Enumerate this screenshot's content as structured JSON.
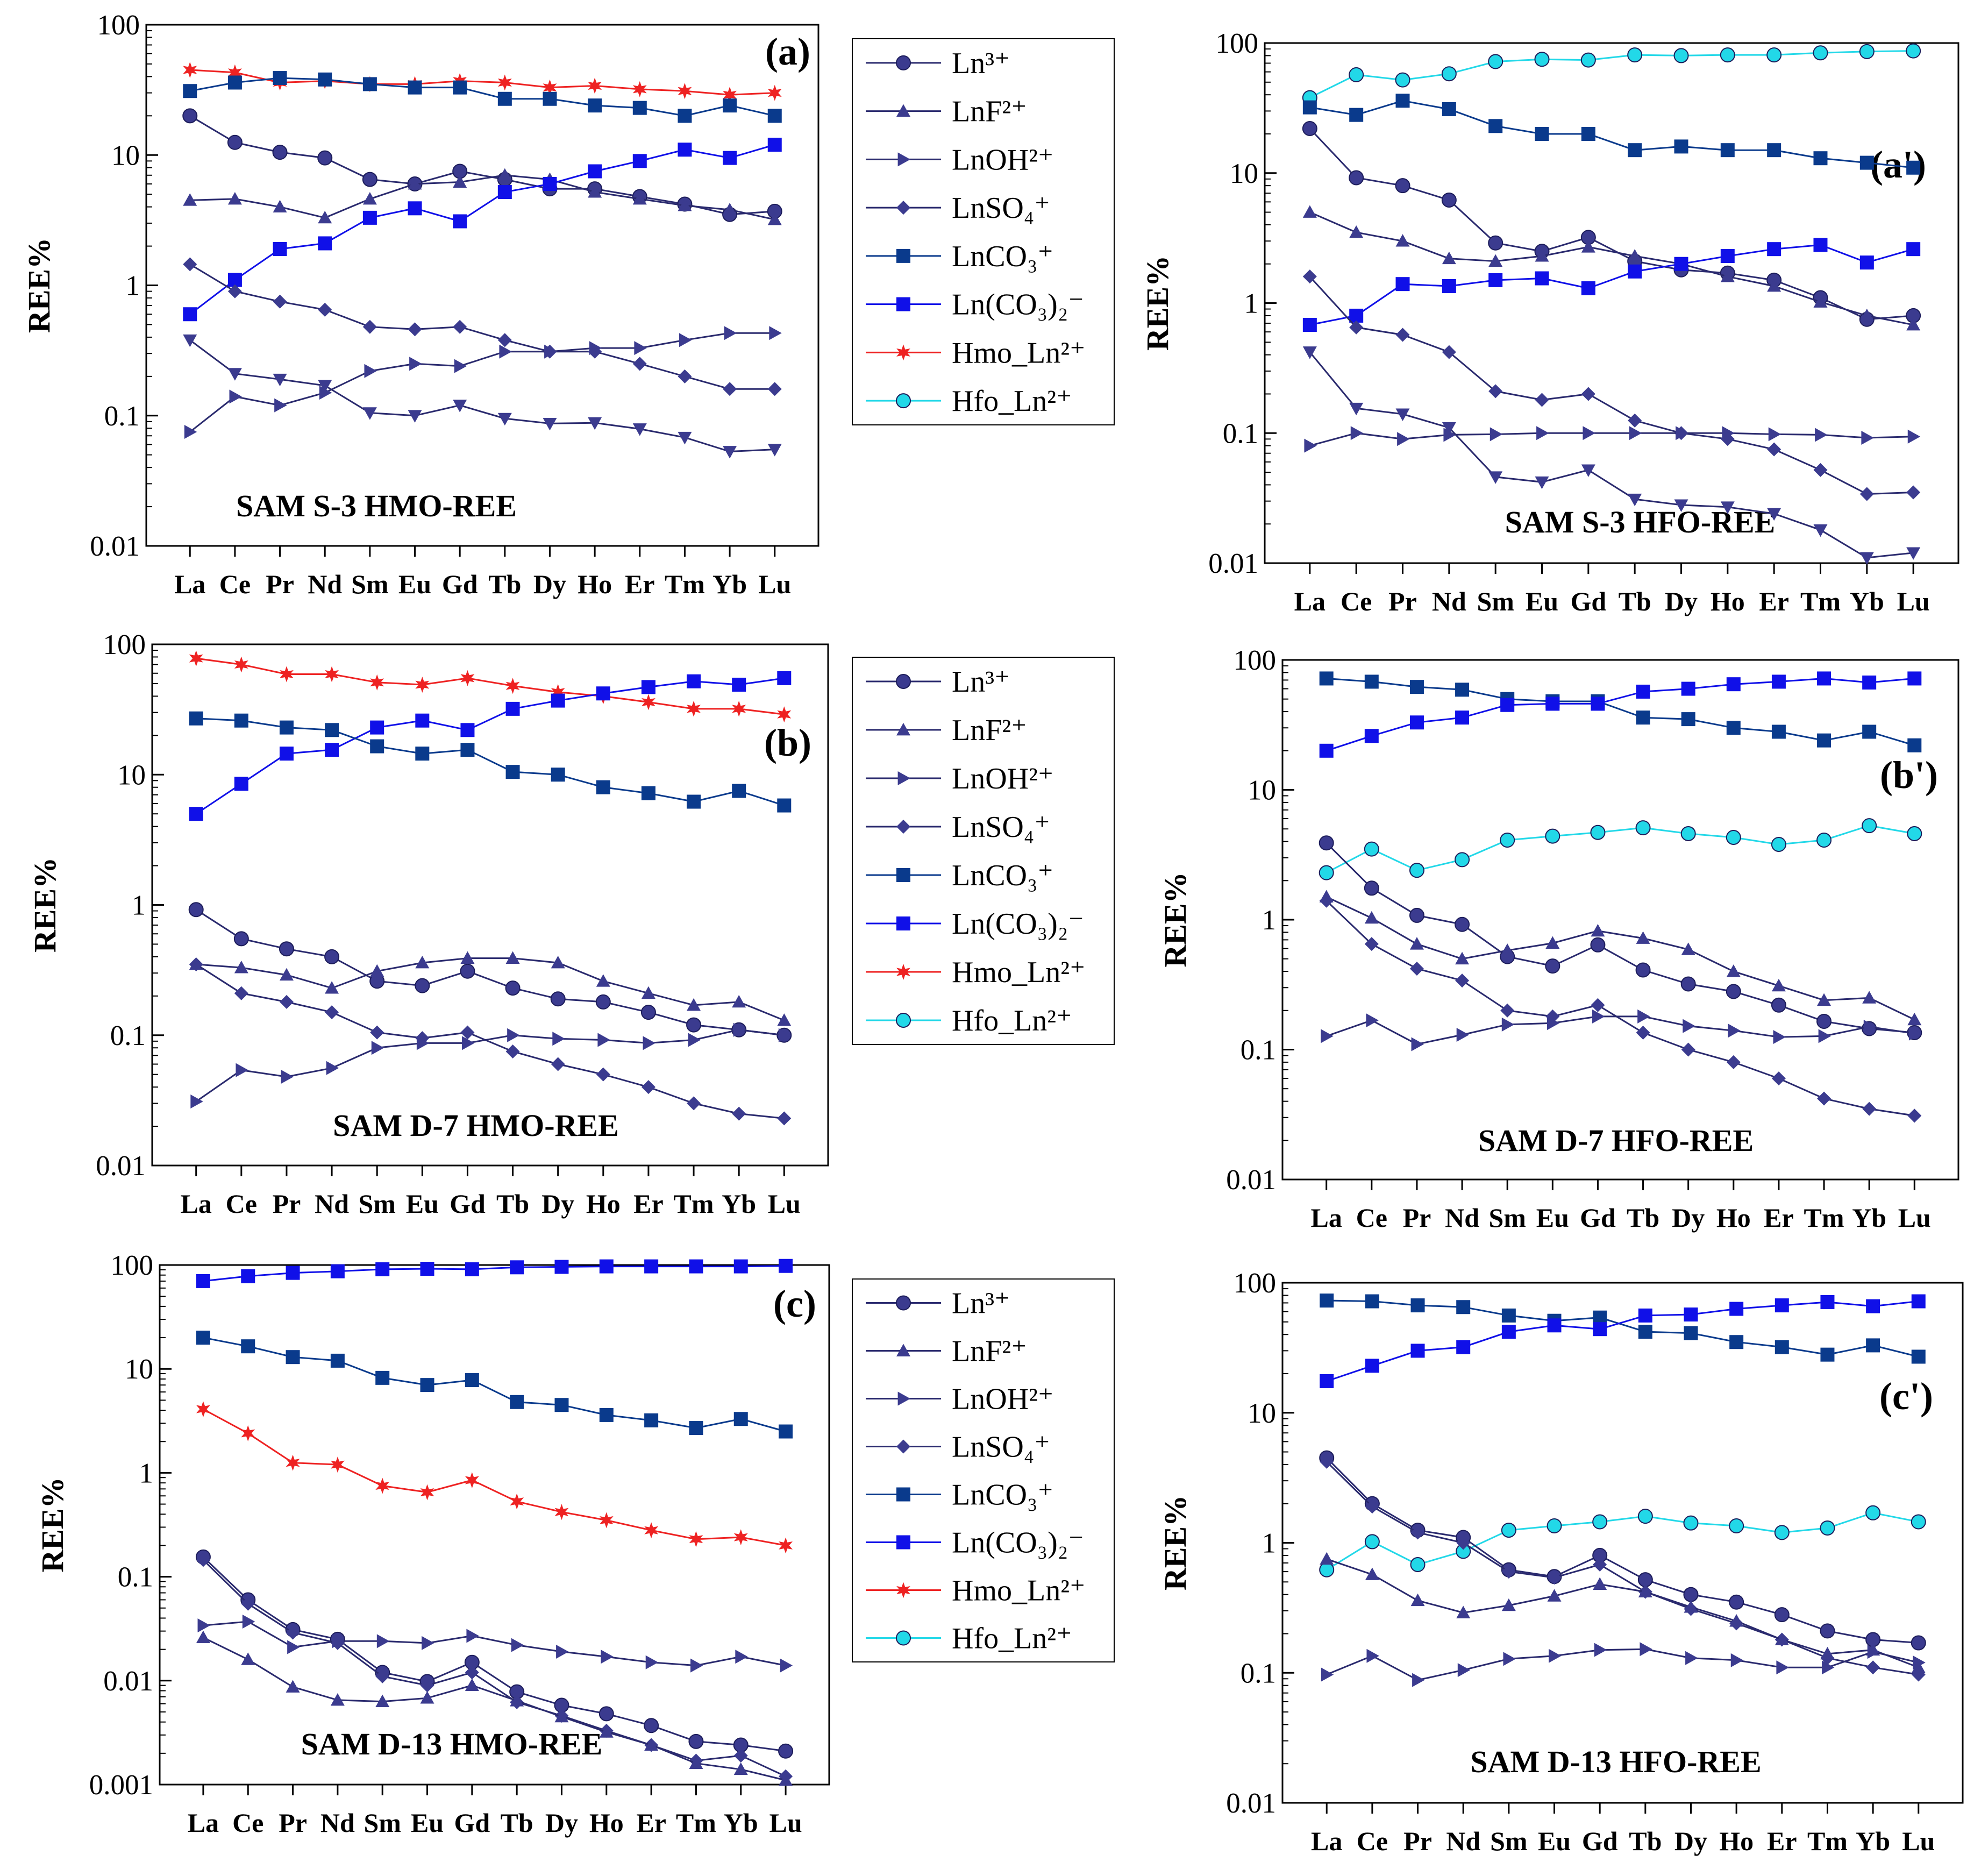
{
  "legend_items": [
    {
      "key": "ln3",
      "label": "Ln³⁺",
      "color": "#3b3b8f",
      "marker": "circle"
    },
    {
      "key": "lnf",
      "label": "LnF²⁺",
      "color": "#3b3b8f",
      "marker": "triangle-up"
    },
    {
      "key": "lnoh",
      "label": "LnOH²⁺",
      "color": "#3b3b8f",
      "marker": "triangle-right"
    },
    {
      "key": "lnso4",
      "label": "LnSO₄⁺",
      "color": "#3b3b8f",
      "marker": "diamond"
    },
    {
      "key": "lnco3",
      "label": "LnCO₃⁺",
      "color": "#0a3a8c",
      "marker": "square"
    },
    {
      "key": "lnco32",
      "label": "Ln(CO₃)₂⁻",
      "color": "#1010e8",
      "marker": "square"
    },
    {
      "key": "hmo",
      "label": "Hmo_Ln²⁺",
      "color": "#ee2222",
      "marker": "star"
    },
    {
      "key": "hfo",
      "label": "Hfo_Ln²⁺",
      "color": "#22d8e8",
      "marker": "circle"
    }
  ],
  "chart_data": [
    {
      "type": "line",
      "yscale": "log",
      "title": "SAM S-3   HMO-REE",
      "panel_label": "(a)",
      "ylabel": "REE%",
      "ylim": [
        0.01,
        100
      ],
      "yticks": [
        "0.01",
        "0.1",
        "1",
        "10",
        "100"
      ],
      "categories": [
        "La",
        "Ce",
        "Pr",
        "Nd",
        "Sm",
        "Eu",
        "Gd",
        "Tb",
        "Dy",
        "Ho",
        "Er",
        "Tm",
        "Yb",
        "Lu"
      ],
      "series": [
        {
          "key": "hmo",
          "name": "Hmo_Ln²⁺",
          "values": [
            45,
            43,
            36,
            37,
            35,
            35,
            37,
            36,
            33,
            34,
            32,
            31,
            29,
            30
          ]
        },
        {
          "key": "lnco3",
          "name": "LnCO₃⁺",
          "values": [
            31,
            36,
            39,
            38,
            35,
            33,
            33,
            27,
            27,
            24,
            23,
            20,
            24,
            20
          ]
        },
        {
          "key": "ln3",
          "name": "Ln³⁺",
          "values": [
            20,
            12.5,
            10.5,
            9.5,
            6.5,
            6,
            7.5,
            6.5,
            5.5,
            5.5,
            4.8,
            4.2,
            3.5,
            3.7
          ]
        },
        {
          "key": "lnf",
          "name": "LnF²⁺",
          "values": [
            4.5,
            4.6,
            4,
            3.3,
            4.6,
            6,
            6.2,
            7,
            6.5,
            5.2,
            4.6,
            4.1,
            3.8,
            3.2
          ]
        },
        {
          "key": "lnco32",
          "name": "Ln(CO₃)₂⁻",
          "values": [
            0.6,
            1.1,
            1.9,
            2.1,
            3.3,
            3.9,
            3.1,
            5.2,
            6,
            7.5,
            9,
            11,
            9.5,
            12
          ]
        },
        {
          "key": "lnso4",
          "name": "LnSO₄⁺",
          "values": [
            1.45,
            0.9,
            0.75,
            0.65,
            0.48,
            0.46,
            0.48,
            0.38,
            0.31,
            0.31,
            0.25,
            0.2,
            0.16,
            0.16
          ]
        },
        {
          "key": "lnoh",
          "name": "LnOH²⁺",
          "values": [
            0.075,
            0.14,
            0.12,
            0.15,
            0.22,
            0.25,
            0.24,
            0.31,
            0.31,
            0.33,
            0.33,
            0.38,
            0.43,
            0.43
          ]
        },
        {
          "key": "lnoh2",
          "name": "LnOH²⁺",
          "marker": "triangle-down",
          "color": "#3b3b8f",
          "values": [
            0.38,
            0.21,
            0.19,
            0.17,
            0.105,
            0.1,
            0.12,
            0.095,
            0.087,
            0.088,
            0.079,
            0.068,
            0.053,
            0.055
          ]
        }
      ]
    },
    {
      "type": "line",
      "yscale": "log",
      "title": "SAM S-3  HFO-REE",
      "panel_label": "(a')",
      "ylabel": "REE%",
      "ylim": [
        0.01,
        100
      ],
      "yticks": [
        "0.01",
        "0.1",
        "1",
        "10",
        "100"
      ],
      "categories": [
        "La",
        "Ce",
        "Pr",
        "Nd",
        "Sm",
        "Eu",
        "Gd",
        "Tb",
        "Dy",
        "Ho",
        "Er",
        "Tm",
        "Yb",
        "Lu"
      ],
      "series": [
        {
          "key": "hfo",
          "name": "Hfo_Ln²⁺",
          "values": [
            38,
            57,
            52,
            58,
            72,
            75,
            74,
            81,
            80,
            81,
            81,
            84,
            86,
            87
          ]
        },
        {
          "key": "lnco3",
          "name": "LnCO₃⁺",
          "values": [
            32,
            28,
            36,
            31,
            23,
            20,
            20,
            15,
            16,
            15,
            15,
            13,
            12,
            11
          ]
        },
        {
          "key": "ln3",
          "name": "Ln³⁺",
          "values": [
            22,
            9.2,
            8,
            6.2,
            2.9,
            2.5,
            3.2,
            2.1,
            1.8,
            1.7,
            1.5,
            1.1,
            0.75,
            0.8
          ]
        },
        {
          "key": "lnf",
          "name": "LnF²⁺",
          "values": [
            5,
            3.5,
            3,
            2.2,
            2.1,
            2.3,
            2.7,
            2.3,
            2,
            1.6,
            1.35,
            1.02,
            0.8,
            0.68
          ]
        },
        {
          "key": "lnco32",
          "name": "Ln(CO₃)₂⁻",
          "values": [
            0.68,
            0.8,
            1.4,
            1.35,
            1.5,
            1.55,
            1.3,
            1.75,
            2,
            2.3,
            2.6,
            2.8,
            2.05,
            2.6
          ]
        },
        {
          "key": "lnso4",
          "name": "LnSO₄⁺",
          "values": [
            1.6,
            0.65,
            0.57,
            0.42,
            0.21,
            0.18,
            0.2,
            0.125,
            0.1,
            0.09,
            0.075,
            0.052,
            0.034,
            0.035
          ]
        },
        {
          "key": "lnoh",
          "name": "LnOH²⁺",
          "values": [
            0.08,
            0.1,
            0.09,
            0.097,
            0.098,
            0.1,
            0.1,
            0.1,
            0.1,
            0.1,
            0.098,
            0.097,
            0.092,
            0.094
          ]
        },
        {
          "key": "lnoh2",
          "name": "LnOH²⁺",
          "marker": "triangle-down",
          "color": "#3b3b8f",
          "values": [
            0.42,
            0.155,
            0.14,
            0.11,
            0.046,
            0.042,
            0.052,
            0.031,
            0.028,
            0.027,
            0.024,
            0.018,
            0.011,
            0.012
          ]
        }
      ]
    },
    {
      "type": "line",
      "yscale": "log",
      "title": "SAM D-7 HMO-REE",
      "panel_label": "(b)",
      "ylabel": "REE%",
      "ylim": [
        0.01,
        100
      ],
      "yticks": [
        "0.01",
        "0.1",
        "1",
        "10",
        "100"
      ],
      "categories": [
        "La",
        "Ce",
        "Pr",
        "Nd",
        "Sm",
        "Eu",
        "Gd",
        "Tb",
        "Dy",
        "Ho",
        "Er",
        "Tm",
        "Yb",
        "Lu"
      ],
      "series": [
        {
          "key": "hmo",
          "name": "Hmo_Ln²⁺",
          "values": [
            78,
            70,
            59,
            59,
            51,
            49,
            55,
            48,
            43,
            40,
            36,
            32,
            32,
            29
          ]
        },
        {
          "key": "lnco32",
          "name": "Ln(CO₃)₂⁻",
          "values": [
            5,
            8.5,
            14.5,
            15.5,
            23,
            26,
            22,
            32,
            37,
            42,
            47,
            52,
            49,
            55
          ]
        },
        {
          "key": "lnco3",
          "name": "LnCO₃⁺",
          "values": [
            27,
            26,
            23,
            22,
            16.5,
            14.5,
            15.5,
            10.5,
            10,
            8,
            7.2,
            6.2,
            7.5,
            5.8
          ]
        },
        {
          "key": "ln3",
          "name": "Ln³⁺",
          "values": [
            0.92,
            0.55,
            0.46,
            0.4,
            0.26,
            0.24,
            0.31,
            0.23,
            0.19,
            0.18,
            0.15,
            0.12,
            0.11,
            0.1
          ]
        },
        {
          "key": "lnf",
          "name": "LnF²⁺",
          "values": [
            0.35,
            0.33,
            0.29,
            0.23,
            0.31,
            0.36,
            0.39,
            0.39,
            0.36,
            0.26,
            0.21,
            0.17,
            0.18,
            0.13
          ]
        },
        {
          "key": "lnso4",
          "name": "LnSO₄⁺",
          "values": [
            0.35,
            0.21,
            0.18,
            0.15,
            0.105,
            0.095,
            0.105,
            0.075,
            0.06,
            0.05,
            0.04,
            0.03,
            0.025,
            0.023
          ]
        },
        {
          "key": "lnoh",
          "name": "LnOH²⁺",
          "values": [
            0.031,
            0.054,
            0.048,
            0.056,
            0.08,
            0.087,
            0.087,
            0.1,
            0.094,
            0.092,
            0.087,
            0.092,
            0.11,
            0.1
          ]
        }
      ]
    },
    {
      "type": "line",
      "yscale": "log",
      "title": "SAM D-7 HFO-REE",
      "panel_label": "(b')",
      "ylabel": "REE%",
      "ylim": [
        0.01,
        100
      ],
      "yticks": [
        "0.01",
        "0.1",
        "1",
        "10",
        "100"
      ],
      "categories": [
        "La",
        "Ce",
        "Pr",
        "Nd",
        "Sm",
        "Eu",
        "Gd",
        "Tb",
        "Dy",
        "Ho",
        "Er",
        "Tm",
        "Yb",
        "Lu"
      ],
      "series": [
        {
          "key": "lnco3",
          "name": "LnCO₃⁺",
          "values": [
            72,
            68,
            62,
            59,
            50,
            48,
            48,
            36,
            35,
            30,
            28,
            24,
            28,
            22
          ]
        },
        {
          "key": "lnco32",
          "name": "Ln(CO₃)₂⁻",
          "values": [
            20,
            26,
            33,
            36,
            45,
            46,
            46,
            57,
            60,
            65,
            68,
            72,
            67,
            72
          ]
        },
        {
          "key": "hfo",
          "name": "Hfo_Ln²⁺",
          "values": [
            2.3,
            3.5,
            2.4,
            2.9,
            4.1,
            4.4,
            4.7,
            5.1,
            4.6,
            4.3,
            3.8,
            4.1,
            5.3,
            4.6
          ]
        },
        {
          "key": "ln3",
          "name": "Ln³⁺",
          "values": [
            3.9,
            1.75,
            1.08,
            0.92,
            0.52,
            0.44,
            0.64,
            0.41,
            0.32,
            0.28,
            0.22,
            0.165,
            0.145,
            0.135
          ]
        },
        {
          "key": "lnf",
          "name": "LnF²⁺",
          "values": [
            1.5,
            1.03,
            0.65,
            0.5,
            0.58,
            0.66,
            0.82,
            0.72,
            0.59,
            0.4,
            0.31,
            0.24,
            0.25,
            0.17
          ]
        },
        {
          "key": "lnso4",
          "name": "LnSO₄⁺",
          "values": [
            1.4,
            0.65,
            0.42,
            0.34,
            0.2,
            0.18,
            0.22,
            0.135,
            0.1,
            0.08,
            0.06,
            0.042,
            0.035,
            0.031
          ]
        },
        {
          "key": "lnoh",
          "name": "LnOH²⁺",
          "values": [
            0.127,
            0.168,
            0.11,
            0.13,
            0.156,
            0.16,
            0.18,
            0.18,
            0.152,
            0.14,
            0.125,
            0.127,
            0.15,
            0.133
          ]
        }
      ]
    },
    {
      "type": "line",
      "yscale": "log",
      "title": "SAM D-13 HMO-REE",
      "panel_label": "(c)",
      "ylabel": "REE%",
      "ylim": [
        0.001,
        100
      ],
      "yticks": [
        "0.001",
        "0.01",
        "0.1",
        "1",
        "10",
        "100"
      ],
      "categories": [
        "La",
        "Ce",
        "Pr",
        "Nd",
        "Sm",
        "Eu",
        "Gd",
        "Tb",
        "Dy",
        "Ho",
        "Er",
        "Tm",
        "Yb",
        "Lu"
      ],
      "series": [
        {
          "key": "lnco32",
          "name": "Ln(CO₃)₂⁻",
          "values": [
            70,
            78,
            84,
            87,
            91,
            92,
            91,
            95,
            96,
            97,
            97,
            97,
            97,
            98
          ]
        },
        {
          "key": "lnco3",
          "name": "LnCO₃⁺",
          "values": [
            20,
            16.5,
            13,
            12,
            8.2,
            7,
            7.8,
            4.8,
            4.5,
            3.6,
            3.2,
            2.7,
            3.3,
            2.5
          ]
        },
        {
          "key": "hmo",
          "name": "Hmo_Ln²⁺",
          "values": [
            4.1,
            2.4,
            1.25,
            1.2,
            0.75,
            0.65,
            0.85,
            0.53,
            0.42,
            0.35,
            0.28,
            0.23,
            0.24,
            0.2
          ]
        },
        {
          "key": "ln3",
          "name": "Ln³⁺",
          "values": [
            0.155,
            0.06,
            0.031,
            0.025,
            0.012,
            0.0098,
            0.015,
            0.0078,
            0.0058,
            0.0048,
            0.0037,
            0.0026,
            0.0024,
            0.0021
          ]
        },
        {
          "key": "lnso4",
          "name": "LnSO₄⁺",
          "values": [
            0.145,
            0.055,
            0.029,
            0.023,
            0.011,
            0.009,
            0.012,
            0.0062,
            0.0046,
            0.0033,
            0.0024,
            0.0017,
            0.0019,
            0.0012
          ]
        },
        {
          "key": "lnf",
          "name": "LnF²⁺",
          "values": [
            0.026,
            0.016,
            0.0087,
            0.0065,
            0.0063,
            0.0068,
            0.009,
            0.0064,
            0.0045,
            0.0032,
            0.0024,
            0.0016,
            0.0014,
            0.0011
          ]
        },
        {
          "key": "lnoh",
          "name": "LnOH²⁺",
          "values": [
            0.034,
            0.037,
            0.021,
            0.024,
            0.024,
            0.023,
            0.027,
            0.022,
            0.019,
            0.017,
            0.015,
            0.014,
            0.017,
            0.014
          ]
        }
      ]
    },
    {
      "type": "line",
      "yscale": "log",
      "title": "SAM D-13 HFO-REE",
      "panel_label": "(c')",
      "ylabel": "REE%",
      "ylim": [
        0.01,
        100
      ],
      "yticks": [
        "0.01",
        "0.1",
        "1",
        "10",
        "100"
      ],
      "categories": [
        "La",
        "Ce",
        "Pr",
        "Nd",
        "Sm",
        "Eu",
        "Gd",
        "Tb",
        "Dy",
        "Ho",
        "Er",
        "Tm",
        "Yb",
        "Lu"
      ],
      "series": [
        {
          "key": "lnco3",
          "name": "LnCO₃⁺",
          "values": [
            73,
            72,
            67,
            65,
            56,
            51,
            54,
            42,
            41,
            35,
            32,
            28,
            33,
            27
          ]
        },
        {
          "key": "lnco32",
          "name": "Ln(CO₃)₂⁻",
          "values": [
            17.5,
            23,
            30,
            32,
            42,
            47,
            44,
            56,
            57,
            63,
            67,
            71,
            66,
            72
          ]
        },
        {
          "key": "hfo",
          "name": "Hfo_Ln²⁺",
          "values": [
            0.62,
            1.02,
            0.68,
            0.86,
            1.25,
            1.35,
            1.45,
            1.6,
            1.42,
            1.35,
            1.2,
            1.3,
            1.7,
            1.45
          ]
        },
        {
          "key": "ln3",
          "name": "Ln³⁺",
          "values": [
            4.5,
            2,
            1.25,
            1.1,
            0.62,
            0.55,
            0.8,
            0.52,
            0.4,
            0.35,
            0.28,
            0.21,
            0.18,
            0.17
          ]
        },
        {
          "key": "lnso4",
          "name": "LnSO₄⁺",
          "values": [
            4.2,
            1.9,
            1.2,
            1,
            0.6,
            0.54,
            0.68,
            0.42,
            0.31,
            0.24,
            0.18,
            0.13,
            0.11,
            0.097
          ]
        },
        {
          "key": "lnf",
          "name": "LnF²⁺",
          "values": [
            0.75,
            0.57,
            0.36,
            0.29,
            0.33,
            0.39,
            0.48,
            0.42,
            0.32,
            0.25,
            0.18,
            0.14,
            0.15,
            0.11
          ]
        },
        {
          "key": "lnoh",
          "name": "LnOH²⁺",
          "values": [
            0.097,
            0.135,
            0.088,
            0.105,
            0.128,
            0.135,
            0.15,
            0.152,
            0.13,
            0.125,
            0.11,
            0.11,
            0.145,
            0.12
          ]
        }
      ]
    }
  ]
}
